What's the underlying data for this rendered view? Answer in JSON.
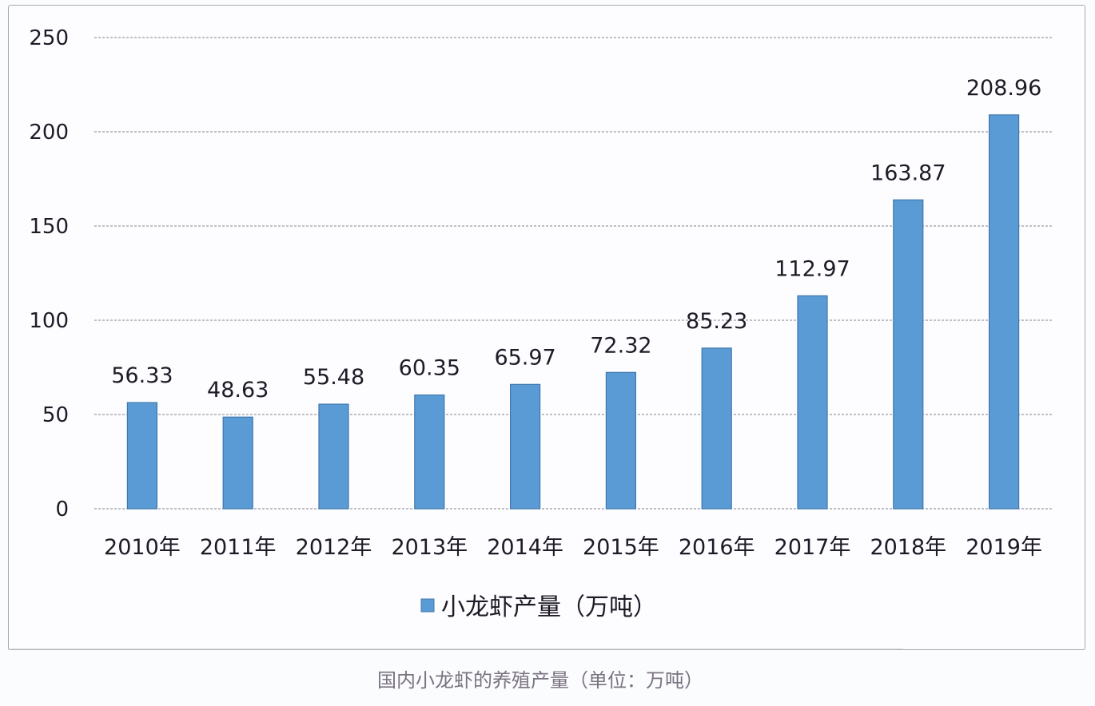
{
  "chart_data": {
    "type": "bar",
    "title": "",
    "xlabel": "",
    "ylabel": "",
    "categories": [
      "2010年",
      "2011年",
      "2012年",
      "2013年",
      "2014年",
      "2015年",
      "2016年",
      "2017年",
      "2018年",
      "2019年"
    ],
    "series": [
      {
        "name": "小龙虾产量（万吨）",
        "color": "#5B9BD5",
        "values": [
          56.33,
          48.63,
          55.48,
          60.35,
          65.97,
          72.32,
          85.23,
          112.97,
          163.87,
          208.96
        ]
      }
    ],
    "data_labels": [
      "56.33",
      "48.63",
      "55.48",
      "60.35",
      "65.97",
      "72.32",
      "85.23",
      "112.97",
      "163.87",
      "208.96"
    ],
    "ylim": [
      0,
      250
    ],
    "yticks": [
      0,
      50,
      100,
      150,
      200,
      250
    ],
    "grid": true,
    "legend_position": "bottom"
  },
  "legend": {
    "label": "小龙虾产量（万吨）"
  },
  "caption": "国内小龙虾的养殖产量（单位：万吨）"
}
